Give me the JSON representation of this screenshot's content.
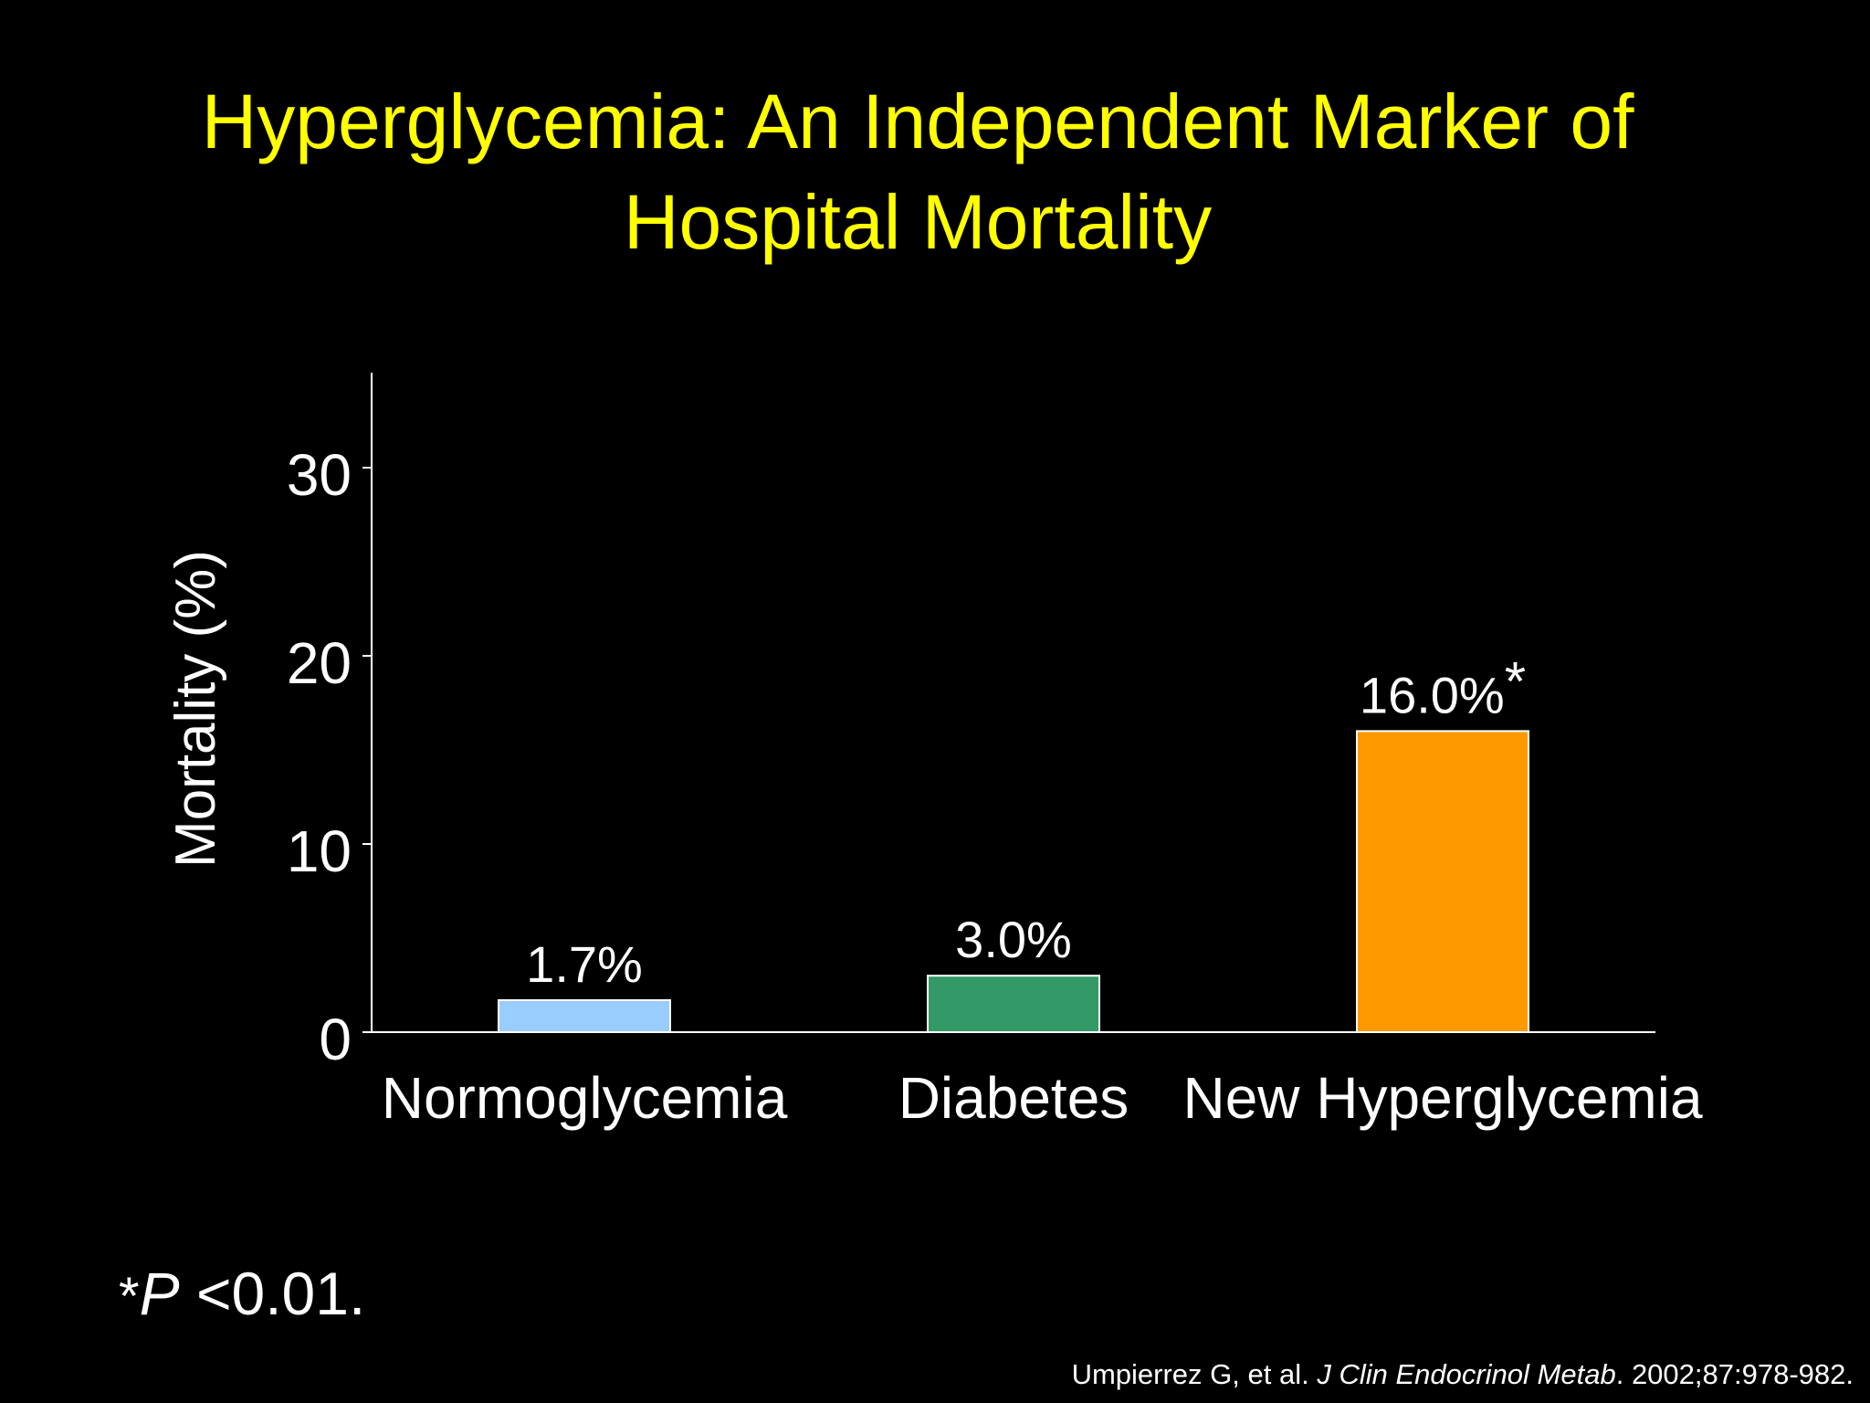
{
  "slide": {
    "title_line1": "Hyperglycemia: An Independent Marker of",
    "title_line2": "Hospital Mortality"
  },
  "chart_data": {
    "type": "bar",
    "title": "",
    "xlabel": "",
    "ylabel": "Mortality (%)",
    "ylim": [
      0,
      35
    ],
    "yticks": [
      0,
      10,
      20,
      30
    ],
    "grid": false,
    "categories": [
      "Normoglycemia",
      "Diabetes",
      "New Hyperglycemia"
    ],
    "values": [
      1.7,
      3.0,
      16.0
    ],
    "value_labels": [
      "1.7%",
      "3.0%",
      "16.0%"
    ],
    "value_label_marks": [
      "",
      "",
      "*"
    ],
    "colors": [
      "#99ccff",
      "#339966",
      "#ff9900"
    ],
    "bar_outline_color": "#ffffff",
    "axis_color": "#ffffff"
  },
  "footnote": {
    "star": "*",
    "p": "P",
    "rest": " <0.01."
  },
  "citation": {
    "authors": "Umpierrez G, et al. ",
    "journal": "J Clin Endocrinol Metab",
    "details": ". 2002;87:978-982."
  }
}
